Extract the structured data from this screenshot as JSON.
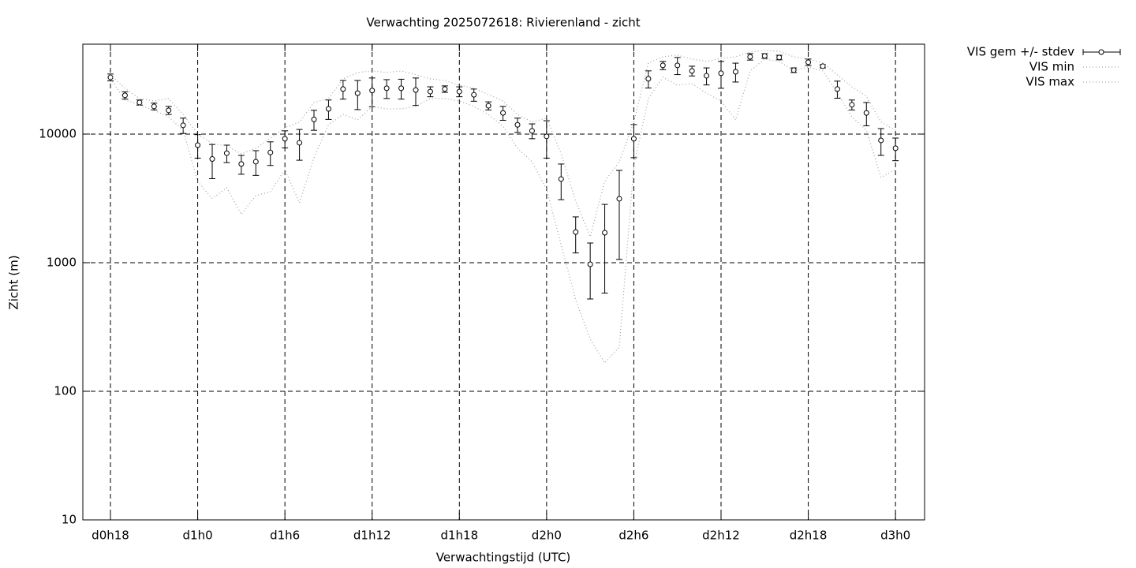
{
  "chart_data": {
    "type": "errorbar",
    "title": "Verwachting 2025072618: Rivierenland - zicht",
    "xlabel": "Verwachtingstijd (UTC)",
    "ylabel": "Zicht (m)",
    "log_scale_y": true,
    "grid": true,
    "legend": "outside-top-right",
    "xlim": [
      16.1,
      74.0
    ],
    "ylim": [
      10,
      50000
    ],
    "xticks": [
      {
        "value": 18,
        "label": "d0h18"
      },
      {
        "value": 24,
        "label": "d1h0"
      },
      {
        "value": 30,
        "label": "d1h6"
      },
      {
        "value": 36,
        "label": "d1h12"
      },
      {
        "value": 42,
        "label": "d1h18"
      },
      {
        "value": 48,
        "label": "d2h0"
      },
      {
        "value": 54,
        "label": "d2h6"
      },
      {
        "value": 60,
        "label": "d2h12"
      },
      {
        "value": 66,
        "label": "d2h18"
      },
      {
        "value": 72,
        "label": "d3h0"
      }
    ],
    "yticks": [
      10,
      100,
      1000,
      10000
    ],
    "x": [
      18,
      19,
      20,
      21,
      22,
      23,
      24,
      25,
      26,
      27,
      28,
      29,
      30,
      31,
      32,
      33,
      34,
      35,
      36,
      37,
      38,
      39,
      40,
      41,
      42,
      43,
      44,
      45,
      46,
      47,
      48,
      49,
      50,
      51,
      52,
      53,
      54,
      55,
      56,
      57,
      58,
      59,
      60,
      61,
      62,
      63,
      64,
      65,
      66,
      67,
      68,
      69,
      70,
      71,
      72
    ],
    "series": [
      {
        "name": "VIS gem +/- stdev",
        "color": "#000000",
        "style": "errorbar",
        "values": [
          27600,
          20000,
          17600,
          16400,
          15300,
          11700,
          8200,
          6400,
          7100,
          5850,
          6100,
          7200,
          9200,
          8560,
          13000,
          15700,
          22400,
          20800,
          21800,
          22700,
          22700,
          22000,
          21400,
          22400,
          21400,
          20200,
          16600,
          14600,
          11800,
          10600,
          9600,
          4470,
          1730,
          972,
          1710,
          3140,
          9200,
          26900,
          34200,
          34200,
          31000,
          28400,
          29700,
          30500,
          39900,
          40500,
          39400,
          31400,
          36200,
          33700,
          22400,
          16900,
          14600,
          8930,
          7760
        ],
        "errors": [
          1700,
          1300,
          800,
          1000,
          1100,
          1600,
          1700,
          1900,
          1100,
          980,
          1330,
          1500,
          1400,
          2300,
          2300,
          2700,
          3700,
          5300,
          5500,
          3800,
          4000,
          5300,
          1900,
          1300,
          1900,
          2200,
          1200,
          1800,
          1500,
          1400,
          3100,
          1380,
          540,
          450,
          1130,
          2080,
          2650,
          4100,
          2500,
          5200,
          2700,
          4300,
          7000,
          5100,
          2300,
          1700,
          1600,
          1300,
          2100,
          1000,
          3400,
          1500,
          3000,
          2100,
          1550
        ]
      },
      {
        "name": "VIS min",
        "color": "#a0a0a0",
        "style": "dotted",
        "values": [
          26900,
          18400,
          16900,
          15300,
          13600,
          10700,
          4290,
          3140,
          3830,
          2370,
          3320,
          3560,
          5300,
          2920,
          6550,
          11850,
          14200,
          12900,
          16400,
          15700,
          15700,
          16400,
          18900,
          18900,
          18100,
          16400,
          14200,
          11500,
          7760,
          6100,
          3720,
          1380,
          515,
          254,
          166,
          221,
          5680,
          18900,
          27700,
          24000,
          24700,
          20800,
          18100,
          12900,
          31000,
          38300,
          36700,
          31000,
          33200,
          31000,
          20800,
          13600,
          10700,
          4600,
          5300
        ]
      },
      {
        "name": "VIS max",
        "color": "#a0a0a0",
        "style": "dotted",
        "values": [
          28900,
          22700,
          18900,
          18100,
          18900,
          14200,
          10000,
          8440,
          8090,
          7030,
          7760,
          9310,
          11200,
          12400,
          17600,
          18900,
          26900,
          30100,
          31000,
          30100,
          31000,
          28900,
          26900,
          26100,
          24000,
          22700,
          20300,
          18100,
          14200,
          12400,
          13300,
          7030,
          3010,
          1590,
          4290,
          6100,
          12400,
          35700,
          39900,
          41100,
          38300,
          36700,
          38800,
          39900,
          43500,
          44700,
          44100,
          39900,
          38300,
          35700,
          28900,
          23300,
          19700,
          12400,
          10700
        ]
      }
    ]
  }
}
